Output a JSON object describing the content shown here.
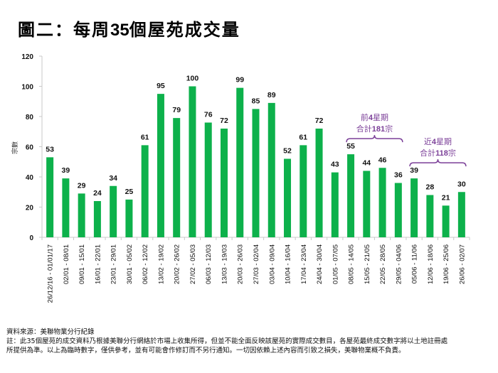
{
  "title_prefix": "圖二：每周",
  "title_num": "35",
  "title_suffix": "個屋苑成交量",
  "chart_data": {
    "type": "bar",
    "title": "圖二：每周35個屋苑成交量",
    "xlabel": "",
    "ylabel": "宗數",
    "ylim": [
      0,
      120
    ],
    "yticks": [
      0,
      20,
      40,
      60,
      80,
      100,
      120
    ],
    "grid": false,
    "bar_color": "#0db14b",
    "categories": [
      "26/12/16 - 01/01/17",
      "02/01 - 08/01",
      "09/01 - 15/01",
      "16/01 - 22/01",
      "23/01 - 29/01",
      "30/01 - 05/02",
      "06/02 - 12/02",
      "13/02 - 19/02",
      "20/02 - 26/02",
      "27/02 - 05/03",
      "06/03 - 12/03",
      "13/03 - 19/03",
      "20/03 - 26/03",
      "27/03 - 02/04",
      "03/04 - 09/04",
      "10/04 - 16/04",
      "17/04 - 23/04",
      "24/04 - 30/04",
      "01/05 - 07/05",
      "08/05 - 14/05",
      "15/05 - 21/05",
      "22/05 - 28/05",
      "29/05 - 04/06",
      "05/06 - 11/06",
      "12/06 - 18/06",
      "19/06 - 25/06",
      "26/06 - 02/07"
    ],
    "values": [
      53,
      39,
      29,
      24,
      34,
      25,
      61,
      95,
      79,
      100,
      76,
      72,
      99,
      85,
      89,
      52,
      61,
      72,
      43,
      55,
      44,
      46,
      36,
      39,
      28,
      21,
      30
    ],
    "annotations": [
      {
        "line1_pre": "前",
        "line1_num": "4",
        "line1_post": "星期",
        "line2_pre": "合計",
        "line2_num": "181",
        "line2_post": "宗",
        "from_index": 19,
        "to_index": 22,
        "color": "#7b3f98"
      },
      {
        "line1_pre": "近",
        "line1_num": "4",
        "line1_post": "星期",
        "line2_pre": "合計",
        "line2_num": "118",
        "line2_post": "宗",
        "from_index": 23,
        "to_index": 26,
        "color": "#7b3f98"
      }
    ]
  },
  "footer": {
    "source": "資料來源：美聯物業分行紀錄",
    "note_line1": "註：此35個屋苑的成交資料乃根據美聯分行網絡於市場上收集所得，但並不能全面反映該屋苑的實際成交數目，各屋苑最終成交數字將以土地註冊處",
    "note_line2": "所提供為準。以上為臨時數字，僅供參考，並有可能會作修訂而不另行通知。一切因依賴上述內容而引致之損失，美聯物業概不負責。"
  }
}
